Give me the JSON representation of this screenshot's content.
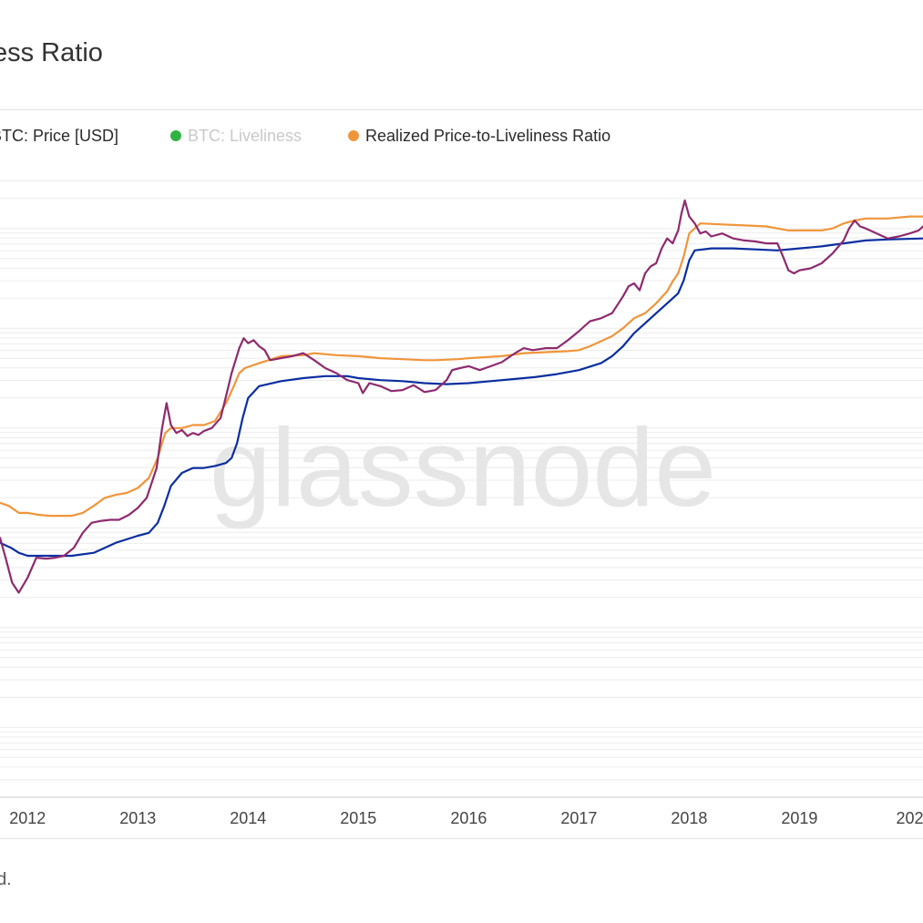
{
  "title": "ess Ratio",
  "footer": "ed.",
  "watermark": "glassnode",
  "legend": [
    {
      "label": "BTC: Price [USD]",
      "color": "#8e2a6e",
      "muted": false,
      "dot_visible": false
    },
    {
      "label": "BTC: Liveliness",
      "color": "#2fb344",
      "muted": true,
      "dot_visible": true
    },
    {
      "label": "Realized Price-to-Liveliness Ratio",
      "color": "#f0953a",
      "muted": false,
      "dot_visible": true
    }
  ],
  "colors": {
    "price": "#8e2a6e",
    "rplr": "#f0953a",
    "realized": "#0a2ea0",
    "grid": "#ececec",
    "watermark": "#e6e6e6"
  },
  "chart_data": {
    "type": "line",
    "title": "",
    "xlabel": "",
    "ylabel": "",
    "x_ticks": [
      "2012",
      "2013",
      "2014",
      "2015",
      "2016",
      "2017",
      "2018",
      "2019",
      "202"
    ],
    "xlim": [
      2011.75,
      2020.12
    ],
    "y_scale": "log",
    "ylim_log10": [
      -1.7,
      4.6
    ],
    "y_tick_labels_visible": false,
    "grid": true,
    "legend_position": "top-left",
    "series": [
      {
        "name": "BTC: Price [USD]",
        "color": "#8e2a6e",
        "x": [
          2011.75,
          2011.8,
          2011.86,
          2011.92,
          2012.0,
          2012.08,
          2012.17,
          2012.25,
          2012.33,
          2012.42,
          2012.5,
          2012.58,
          2012.67,
          2012.75,
          2012.83,
          2012.92,
          2013.0,
          2013.08,
          2013.17,
          2013.22,
          2013.26,
          2013.3,
          2013.35,
          2013.4,
          2013.45,
          2013.5,
          2013.55,
          2013.6,
          2013.67,
          2013.75,
          2013.8,
          2013.85,
          2013.92,
          2013.96,
          2014.0,
          2014.05,
          2014.1,
          2014.15,
          2014.2,
          2014.3,
          2014.4,
          2014.5,
          2014.6,
          2014.7,
          2014.8,
          2014.9,
          2015.0,
          2015.04,
          2015.1,
          2015.2,
          2015.3,
          2015.4,
          2015.5,
          2015.6,
          2015.7,
          2015.8,
          2015.85,
          2015.92,
          2016.0,
          2016.1,
          2016.2,
          2016.3,
          2016.42,
          2016.5,
          2016.58,
          2016.7,
          2016.8,
          2016.9,
          2017.0,
          2017.05,
          2017.1,
          2017.2,
          2017.3,
          2017.4,
          2017.45,
          2017.5,
          2017.55,
          2017.6,
          2017.65,
          2017.7,
          2017.75,
          2017.8,
          2017.85,
          2017.9,
          2017.93,
          2017.96,
          2018.0,
          2018.05,
          2018.1,
          2018.15,
          2018.2,
          2018.3,
          2018.4,
          2018.5,
          2018.6,
          2018.7,
          2018.8,
          2018.85,
          2018.9,
          2018.95,
          2019.0,
          2019.1,
          2019.2,
          2019.3,
          2019.4,
          2019.45,
          2019.5,
          2019.55,
          2019.6,
          2019.7,
          2019.8,
          2019.9,
          2020.0,
          2020.08,
          2020.12
        ],
        "log10_values": [
          0.9,
          0.7,
          0.45,
          0.35,
          0.5,
          0.7,
          0.69,
          0.7,
          0.72,
          0.8,
          0.95,
          1.05,
          1.07,
          1.08,
          1.08,
          1.13,
          1.2,
          1.3,
          1.6,
          2.0,
          2.25,
          2.03,
          1.95,
          1.98,
          1.92,
          1.95,
          1.93,
          1.97,
          2.0,
          2.1,
          2.32,
          2.55,
          2.8,
          2.9,
          2.85,
          2.88,
          2.82,
          2.78,
          2.68,
          2.7,
          2.72,
          2.75,
          2.68,
          2.6,
          2.55,
          2.48,
          2.45,
          2.35,
          2.45,
          2.42,
          2.37,
          2.38,
          2.43,
          2.36,
          2.38,
          2.48,
          2.58,
          2.6,
          2.62,
          2.58,
          2.62,
          2.66,
          2.75,
          2.8,
          2.78,
          2.8,
          2.8,
          2.88,
          2.97,
          3.02,
          3.07,
          3.1,
          3.15,
          3.32,
          3.42,
          3.45,
          3.38,
          3.55,
          3.62,
          3.65,
          3.8,
          3.9,
          3.85,
          3.98,
          4.15,
          4.28,
          4.12,
          4.05,
          3.95,
          3.97,
          3.92,
          3.95,
          3.9,
          3.88,
          3.87,
          3.85,
          3.85,
          3.72,
          3.58,
          3.55,
          3.58,
          3.6,
          3.65,
          3.75,
          3.88,
          4.0,
          4.08,
          4.02,
          4.0,
          3.95,
          3.9,
          3.92,
          3.95,
          3.98,
          4.02
        ]
      },
      {
        "name": "Realized Price-to-Liveliness Ratio",
        "color": "#f0953a",
        "x": [
          2011.75,
          2011.83,
          2011.92,
          2012.0,
          2012.1,
          2012.2,
          2012.3,
          2012.4,
          2012.5,
          2012.6,
          2012.7,
          2012.8,
          2012.9,
          2013.0,
          2013.1,
          2013.18,
          2013.22,
          2013.25,
          2013.3,
          2013.4,
          2013.5,
          2013.6,
          2013.7,
          2013.8,
          2013.87,
          2013.92,
          2013.97,
          2014.1,
          2014.3,
          2014.5,
          2014.6,
          2014.8,
          2015.0,
          2015.2,
          2015.4,
          2015.6,
          2015.7,
          2015.9,
          2016.0,
          2016.3,
          2016.5,
          2016.7,
          2016.9,
          2017.0,
          2017.1,
          2017.2,
          2017.3,
          2017.4,
          2017.5,
          2017.6,
          2017.7,
          2017.8,
          2017.85,
          2017.9,
          2017.95,
          2018.0,
          2018.1,
          2018.3,
          2018.5,
          2018.7,
          2018.8,
          2018.9,
          2019.0,
          2019.2,
          2019.3,
          2019.4,
          2019.5,
          2019.6,
          2019.8,
          2020.0,
          2020.12
        ],
        "log10_values": [
          1.25,
          1.22,
          1.15,
          1.15,
          1.13,
          1.12,
          1.12,
          1.12,
          1.15,
          1.22,
          1.3,
          1.33,
          1.35,
          1.4,
          1.5,
          1.7,
          1.85,
          1.95,
          2.0,
          2.0,
          2.03,
          2.03,
          2.07,
          2.25,
          2.42,
          2.55,
          2.6,
          2.65,
          2.72,
          2.73,
          2.75,
          2.73,
          2.72,
          2.7,
          2.69,
          2.68,
          2.68,
          2.69,
          2.7,
          2.72,
          2.75,
          2.76,
          2.77,
          2.78,
          2.82,
          2.87,
          2.92,
          3.0,
          3.1,
          3.15,
          3.25,
          3.37,
          3.47,
          3.55,
          3.72,
          3.95,
          4.05,
          4.04,
          4.03,
          4.02,
          4.0,
          3.98,
          3.98,
          3.98,
          4.0,
          4.05,
          4.08,
          4.1,
          4.1,
          4.12,
          4.12
        ]
      },
      {
        "name": "",
        "color": "#0a2ea0",
        "x": [
          2011.75,
          2011.85,
          2011.92,
          2012.0,
          2012.2,
          2012.4,
          2012.6,
          2012.8,
          2013.0,
          2013.1,
          2013.18,
          2013.24,
          2013.3,
          2013.4,
          2013.5,
          2013.6,
          2013.7,
          2013.8,
          2013.85,
          2013.9,
          2013.95,
          2014.0,
          2014.1,
          2014.3,
          2014.5,
          2014.7,
          2014.9,
          2015.0,
          2015.2,
          2015.4,
          2015.6,
          2015.8,
          2016.0,
          2016.2,
          2016.4,
          2016.6,
          2016.8,
          2017.0,
          2017.2,
          2017.3,
          2017.4,
          2017.5,
          2017.6,
          2017.7,
          2017.8,
          2017.9,
          2017.95,
          2018.0,
          2018.05,
          2018.2,
          2018.4,
          2018.6,
          2018.8,
          2019.0,
          2019.2,
          2019.4,
          2019.6,
          2019.8,
          2020.12
        ],
        "log10_values": [
          0.85,
          0.8,
          0.75,
          0.72,
          0.72,
          0.72,
          0.75,
          0.85,
          0.92,
          0.95,
          1.05,
          1.22,
          1.42,
          1.55,
          1.6,
          1.6,
          1.62,
          1.65,
          1.7,
          1.85,
          2.1,
          2.3,
          2.42,
          2.47,
          2.5,
          2.52,
          2.52,
          2.5,
          2.48,
          2.47,
          2.45,
          2.44,
          2.45,
          2.47,
          2.49,
          2.51,
          2.54,
          2.58,
          2.65,
          2.72,
          2.82,
          2.95,
          3.05,
          3.15,
          3.25,
          3.35,
          3.48,
          3.68,
          3.78,
          3.8,
          3.8,
          3.79,
          3.78,
          3.8,
          3.82,
          3.85,
          3.88,
          3.89,
          3.9
        ]
      }
    ]
  }
}
